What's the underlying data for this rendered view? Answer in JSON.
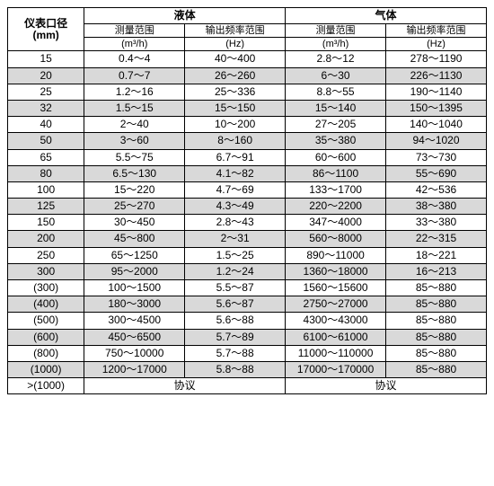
{
  "header": {
    "diameter_top": "仪表口径",
    "diameter_unit": "(mm)",
    "liquid": "液体",
    "gas": "气体",
    "meas_range": "测量范围",
    "meas_unit": "(m³/h)",
    "freq_range": "输出频率范围",
    "freq_unit": "(Hz)"
  },
  "rows": [
    {
      "dia": "15",
      "lm": "0.4～4",
      "lf": "40～400",
      "gm": "2.8～12",
      "gf": "278～1190",
      "alt": false
    },
    {
      "dia": "20",
      "lm": "0.7～7",
      "lf": "26～260",
      "gm": "6～30",
      "gf": "226～1130",
      "alt": true
    },
    {
      "dia": "25",
      "lm": "1.2～16",
      "lf": "25～336",
      "gm": "8.8～55",
      "gf": "190～1140",
      "alt": false
    },
    {
      "dia": "32",
      "lm": "1.5～15",
      "lf": "15～150",
      "gm": "15～140",
      "gf": "150～1395",
      "alt": true
    },
    {
      "dia": "40",
      "lm": "2～40",
      "lf": "10～200",
      "gm": "27～205",
      "gf": "140～1040",
      "alt": false
    },
    {
      "dia": "50",
      "lm": "3～60",
      "lf": "8～160",
      "gm": "35～380",
      "gf": "94～1020",
      "alt": true
    },
    {
      "dia": "65",
      "lm": "5.5～75",
      "lf": "6.7～91",
      "gm": "60～600",
      "gf": "73～730",
      "alt": false
    },
    {
      "dia": "80",
      "lm": "6.5～130",
      "lf": "4.1～82",
      "gm": "86～1100",
      "gf": "55～690",
      "alt": true
    },
    {
      "dia": "100",
      "lm": "15～220",
      "lf": "4.7～69",
      "gm": "133～1700",
      "gf": "42～536",
      "alt": false
    },
    {
      "dia": "125",
      "lm": "25～270",
      "lf": "4.3～49",
      "gm": "220～2200",
      "gf": "38～380",
      "alt": true
    },
    {
      "dia": "150",
      "lm": "30～450",
      "lf": "2.8～43",
      "gm": "347～4000",
      "gf": "33～380",
      "alt": false
    },
    {
      "dia": "200",
      "lm": "45～800",
      "lf": "2～31",
      "gm": "560～8000",
      "gf": "22～315",
      "alt": true
    },
    {
      "dia": "250",
      "lm": "65～1250",
      "lf": "1.5～25",
      "gm": "890～11000",
      "gf": "18～221",
      "alt": false
    },
    {
      "dia": "300",
      "lm": "95～2000",
      "lf": "1.2～24",
      "gm": "1360～18000",
      "gf": "16～213",
      "alt": true
    },
    {
      "dia": "(300)",
      "lm": "100～1500",
      "lf": "5.5～87",
      "gm": "1560～15600",
      "gf": "85～880",
      "alt": false
    },
    {
      "dia": "(400)",
      "lm": "180～3000",
      "lf": "5.6～87",
      "gm": "2750～27000",
      "gf": "85～880",
      "alt": true
    },
    {
      "dia": "(500)",
      "lm": "300～4500",
      "lf": "5.6～88",
      "gm": "4300～43000",
      "gf": "85～880",
      "alt": false
    },
    {
      "dia": "(600)",
      "lm": "450～6500",
      "lf": "5.7～89",
      "gm": "6100～61000",
      "gf": "85～880",
      "alt": true
    },
    {
      "dia": "(800)",
      "lm": "750～10000",
      "lf": "5.7～88",
      "gm": "11000～110000",
      "gf": "85～880",
      "alt": false
    },
    {
      "dia": "(1000)",
      "lm": "1200～17000",
      "lf": "5.8～88",
      "gm": "17000～170000",
      "gf": "85～880",
      "alt": true
    }
  ],
  "footer": {
    "dia": ">(1000)",
    "liquid": "协议",
    "gas": "协议"
  }
}
